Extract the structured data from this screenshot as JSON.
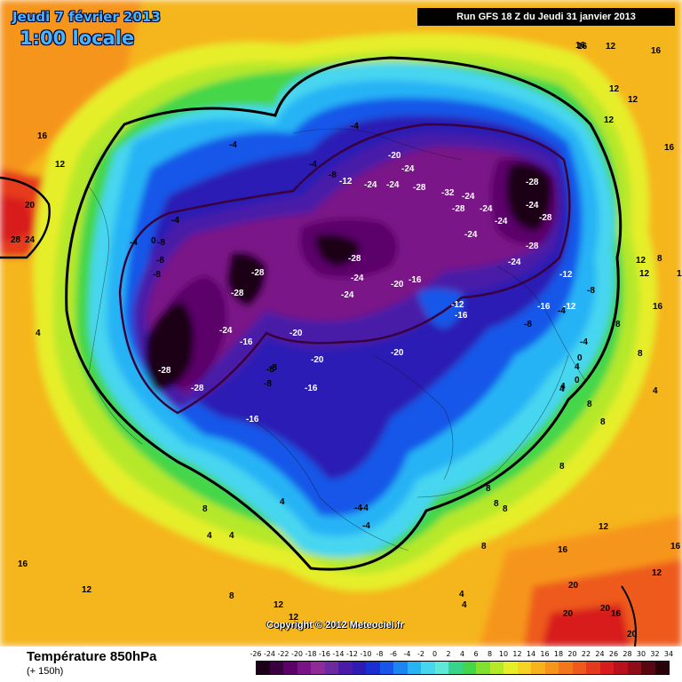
{
  "header": {
    "date": "Jeudi 7 février 2013",
    "time": "1:00 locale",
    "run": "Run GFS 18 Z du Jeudi 31 janvier 2013"
  },
  "copyright": "Copyright © 2012 Meteociel.fr",
  "legend": {
    "parameter": "Température 850hPa",
    "lead": "(+ 150h)",
    "ticks": [
      "-26",
      "-24",
      "-22",
      "-20",
      "-18",
      "-16",
      "-14",
      "-12",
      "-10",
      "-8",
      "-6",
      "-4",
      "-2",
      "0",
      "2",
      "4",
      "6",
      "8",
      "10",
      "12",
      "14",
      "16",
      "18",
      "20",
      "22",
      "24",
      "26",
      "28",
      "30",
      "32",
      "34"
    ],
    "colors": [
      "#1a0018",
      "#3b0040",
      "#5c006a",
      "#7a1387",
      "#8f2a98",
      "#6b2aa0",
      "#4a1aa8",
      "#2c1cb4",
      "#1a2fd2",
      "#1656e8",
      "#1b86f2",
      "#28b3f5",
      "#46d6f0",
      "#5fe7d8",
      "#37d48a",
      "#44d64a",
      "#7fe02e",
      "#b6e82a",
      "#e6ee2a",
      "#f6d222",
      "#f7b31c",
      "#f6951a",
      "#f2761a",
      "#ee5a1c",
      "#e63a1c",
      "#d81c1c",
      "#b8101c",
      "#8f0c18",
      "#5a0610",
      "#2a0308"
    ]
  },
  "map_labels": [
    {
      "t": "16"
    },
    {
      "t": "12"
    },
    {
      "t": "20"
    },
    {
      "t": "28"
    },
    {
      "t": "24"
    },
    {
      "t": "16"
    },
    {
      "t": "12"
    },
    {
      "t": "-4"
    },
    {
      "t": "-4"
    },
    {
      "t": "-8"
    },
    {
      "t": "-12"
    },
    {
      "t": "-4"
    },
    {
      "t": "-20"
    },
    {
      "t": "-24"
    },
    {
      "t": "-24"
    },
    {
      "t": "-24"
    },
    {
      "t": "-28"
    },
    {
      "t": "-32"
    },
    {
      "t": "-28"
    },
    {
      "t": "-24"
    },
    {
      "t": "-24"
    },
    {
      "t": "-28"
    },
    {
      "t": "-24"
    },
    {
      "t": "-28"
    },
    {
      "t": "-24"
    },
    {
      "t": "-24"
    },
    {
      "t": "-28"
    },
    {
      "t": "-24"
    },
    {
      "t": "-28"
    },
    {
      "t": "-24"
    },
    {
      "t": "-24"
    },
    {
      "t": "-20"
    },
    {
      "t": "-16"
    },
    {
      "t": "-28"
    },
    {
      "t": "-28"
    },
    {
      "t": "-24"
    },
    {
      "t": "-16"
    },
    {
      "t": "-20"
    },
    {
      "t": "-28"
    },
    {
      "t": "-28"
    },
    {
      "t": "-20"
    },
    {
      "t": "-20"
    },
    {
      "t": "-16"
    },
    {
      "t": "-8"
    },
    {
      "t": "-8"
    },
    {
      "t": "-16"
    },
    {
      "t": "-12"
    },
    {
      "t": "-16"
    },
    {
      "t": "-12"
    },
    {
      "t": "-16"
    },
    {
      "t": "-8"
    },
    {
      "t": "-12"
    },
    {
      "t": "-4"
    },
    {
      "t": "-8"
    },
    {
      "t": "-4"
    },
    {
      "t": "-4"
    },
    {
      "t": "-8"
    },
    {
      "t": "-8"
    },
    {
      "t": "-8"
    },
    {
      "t": "-4"
    },
    {
      "t": "4"
    },
    {
      "t": "8"
    },
    {
      "t": "4"
    },
    {
      "t": "4"
    },
    {
      "t": "16"
    },
    {
      "t": "12"
    },
    {
      "t": "12"
    },
    {
      "t": "8"
    },
    {
      "t": "12"
    },
    {
      "t": "8"
    },
    {
      "t": "8"
    },
    {
      "t": "4"
    },
    {
      "t": "4"
    },
    {
      "t": "8"
    },
    {
      "t": "12"
    },
    {
      "t": "16"
    },
    {
      "t": "12"
    },
    {
      "t": "16"
    },
    {
      "t": "20"
    },
    {
      "t": "20"
    },
    {
      "t": "20"
    },
    {
      "t": "16"
    },
    {
      "t": "20"
    },
    {
      "t": "16"
    },
    {
      "t": "16"
    },
    {
      "t": "12"
    },
    {
      "t": "12"
    },
    {
      "t": "12"
    },
    {
      "t": "16"
    },
    {
      "t": "12"
    },
    {
      "t": "12"
    },
    {
      "t": "8"
    },
    {
      "t": "12"
    },
    {
      "t": "16"
    },
    {
      "t": "8"
    },
    {
      "t": "4"
    },
    {
      "t": "4"
    },
    {
      "t": "0"
    },
    {
      "t": "8"
    },
    {
      "t": "8"
    },
    {
      "t": "-4"
    },
    {
      "t": "-8"
    },
    {
      "t": "-4"
    },
    {
      "t": "0"
    },
    {
      "t": "4"
    },
    {
      "t": "8"
    },
    {
      "t": "4"
    },
    {
      "t": "8"
    },
    {
      "t": "8"
    },
    {
      "t": "0"
    },
    {
      "t": "-4"
    },
    {
      "t": "4"
    }
  ]
}
